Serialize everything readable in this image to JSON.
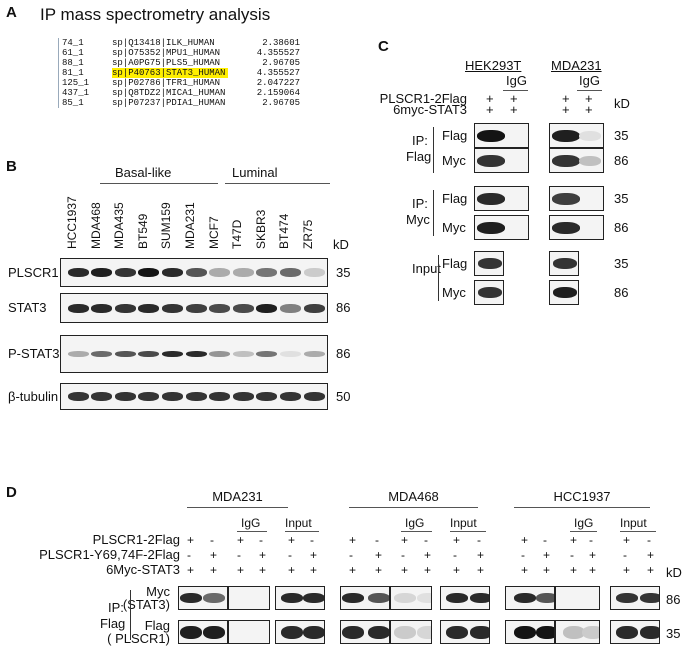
{
  "panelA": {
    "label": "A",
    "title": "IP mass spectrometry analysis",
    "rows": [
      {
        "id": "74_1",
        "protein": "sp|Q13418|ILK_HUMAN",
        "score": "2.38601",
        "highlight": false
      },
      {
        "id": "61_1",
        "protein": "sp|O75352|MPU1_HUMAN",
        "score": "4.355527",
        "highlight": false
      },
      {
        "id": "88_1",
        "protein": "sp|A0PG75|PLS5_HUMAN",
        "score": "2.96705",
        "highlight": false
      },
      {
        "id": "81_1",
        "protein": "sp|P40763|STAT3_HUMAN",
        "score": "4.355527",
        "highlight": true
      },
      {
        "id": "125_1",
        "protein": "sp|P02786|TFR1_HUMAN",
        "score": "2.047227",
        "highlight": false
      },
      {
        "id": "437_1",
        "protein": "sp|Q8TDZ2|MICA1_HUMAN",
        "score": "2.159064",
        "highlight": false
      },
      {
        "id": "85_1",
        "protein": "sp|P07237|PDIA1_HUMAN",
        "score": "2.96705",
        "highlight": false
      }
    ],
    "highlight_color": "#ffef00"
  },
  "panelB": {
    "label": "B",
    "groups": [
      "Basal-like",
      "Luminal"
    ],
    "lanes": [
      "HCC1937",
      "MDA468",
      "MDA435",
      "BT549",
      "SUM159",
      "MDA231",
      "MCF7",
      "T47D",
      "SKBR3",
      "BT474",
      "ZR75"
    ],
    "kd_label": "kD",
    "blots": [
      {
        "name": "PLSCR1",
        "kd": "35",
        "bands": [
          0.9,
          0.95,
          0.85,
          1,
          0.9,
          0.7,
          0.3,
          0.3,
          0.55,
          0.6,
          0.15
        ]
      },
      {
        "name": "STAT3",
        "kd": "86",
        "bands": [
          0.9,
          0.9,
          0.85,
          0.9,
          0.85,
          0.8,
          0.75,
          0.75,
          0.95,
          0.5,
          0.8
        ]
      },
      {
        "name": "P-STAT3",
        "kd": "86",
        "bands": [
          0.3,
          0.6,
          0.7,
          0.75,
          0.9,
          0.9,
          0.4,
          0.2,
          0.55,
          0.05,
          0.3
        ]
      },
      {
        "name": "β-tubulin",
        "kd": "50",
        "bands": [
          0.85,
          0.85,
          0.85,
          0.85,
          0.85,
          0.85,
          0.85,
          0.85,
          0.85,
          0.85,
          0.85
        ]
      }
    ]
  },
  "panelC": {
    "label": "C",
    "cells": [
      "HEK293T",
      "MDA231"
    ],
    "igg": "IgG",
    "kd_label": "kD",
    "conditions": [
      {
        "name": "PLSCR1-2Flag",
        "signs": [
          "+",
          "+",
          "+",
          "+"
        ]
      },
      {
        "name": "6myc-STAT3",
        "signs": [
          "+",
          "+",
          "+",
          "+"
        ]
      }
    ],
    "sections": [
      {
        "ip": "IP:",
        "ip2": "Flag",
        "rows": [
          {
            "ab": "Flag",
            "kd": "35",
            "bands": [
              1,
              0,
              0.95,
              0.05
            ]
          },
          {
            "ab": "Myc",
            "kd": "86",
            "bands": [
              0.85,
              0,
              0.85,
              0.2
            ]
          }
        ]
      },
      {
        "ip": "IP:",
        "ip2": "Myc",
        "rows": [
          {
            "ab": "Flag",
            "kd": "35",
            "bands": [
              0.9,
              0,
              0.8,
              0
            ]
          },
          {
            "ab": "Myc",
            "kd": "86",
            "bands": [
              0.95,
              0,
              0.9,
              0
            ]
          }
        ]
      },
      {
        "ip": "Input",
        "ip2": "",
        "rows": [
          {
            "ab": "Flag",
            "kd": "35",
            "bands": [
              0.85,
              0.85
            ]
          },
          {
            "ab": "Myc",
            "kd": "86",
            "bands": [
              0.85,
              0.95
            ]
          }
        ]
      }
    ]
  },
  "panelD": {
    "label": "D",
    "cells": [
      "MDA231",
      "MDA468",
      "HCC1937"
    ],
    "igg": "IgG",
    "input": "Input",
    "kd_label": "kD",
    "conditions": [
      {
        "name": "PLSCR1-2Flag",
        "signs": [
          "+",
          "-",
          "+",
          "-",
          "+",
          "-"
        ]
      },
      {
        "name": "PLSCR1-Y69,74F-2Flag",
        "signs": [
          "-",
          "+",
          "-",
          "+",
          "-",
          "+"
        ]
      },
      {
        "name": "6Myc-STAT3",
        "signs": [
          "+",
          "+",
          "+",
          "+",
          "+",
          "+"
        ]
      }
    ],
    "ip": "IP:",
    "ip2": "Flag",
    "rows": [
      {
        "ab": "Myc",
        "ab2": "(STAT3)",
        "kd": "86",
        "bands": [
          [
            0.9,
            0.6,
            0,
            0,
            0.9,
            0.9
          ],
          [
            0.9,
            0.7,
            0.1,
            0.05,
            0.9,
            0.9
          ],
          [
            0.9,
            0.7,
            0,
            0,
            0.85,
            0.85
          ]
        ]
      },
      {
        "ab": "Flag",
        "ab2": "( PLSCR1)",
        "kd": "35",
        "bands": [
          [
            0.95,
            0.95,
            0,
            0,
            0.9,
            0.9
          ],
          [
            0.9,
            0.9,
            0.15,
            0.1,
            0.9,
            0.9
          ],
          [
            1,
            1,
            0.2,
            0.15,
            0.9,
            0.9
          ]
        ]
      }
    ]
  }
}
